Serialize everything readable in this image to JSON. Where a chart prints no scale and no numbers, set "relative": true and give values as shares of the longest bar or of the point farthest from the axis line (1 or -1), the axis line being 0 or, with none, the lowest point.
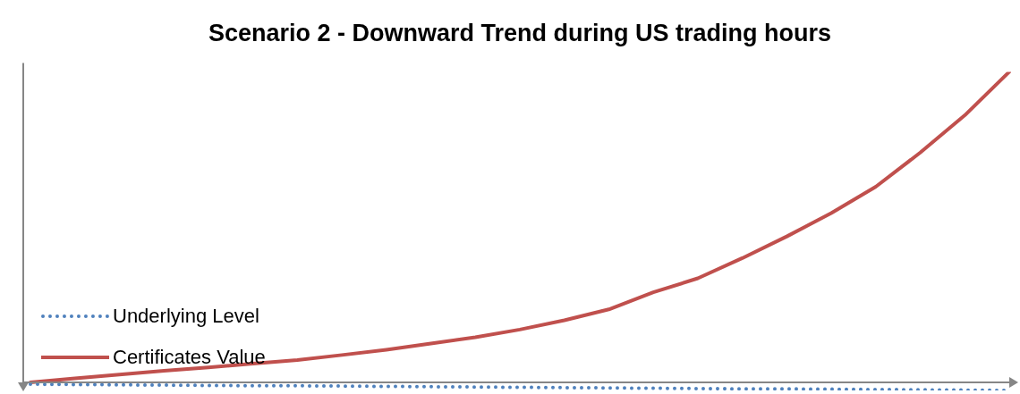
{
  "chart_data": {
    "type": "line",
    "title": "Scenario 2 - Downward Trend during US trading hours",
    "relative": true,
    "legend": "bottom left",
    "marker": "none",
    "categories": [
      null,
      null,
      null,
      null,
      null,
      null,
      null,
      null,
      null,
      null,
      null,
      null,
      null,
      null,
      null,
      null,
      null,
      null,
      null,
      null,
      null,
      null,
      null
    ],
    "series": [
      {
        "name": "Underlying Level",
        "color": "#4f81bd",
        "line_style": "dotted",
        "values": [
          -0.006,
          -0.007,
          -0.008,
          -0.009,
          -0.01,
          -0.011,
          -0.011,
          -0.012,
          -0.013,
          -0.014,
          -0.015,
          -0.016,
          -0.017,
          -0.018,
          -0.019,
          -0.02,
          -0.021,
          -0.021,
          -0.022,
          -0.023,
          -0.024,
          -0.025,
          -0.026
        ]
      },
      {
        "name": "Certificates Value",
        "color": "#c0504d",
        "line_style": "solid",
        "values": [
          0,
          0.013,
          0.025,
          0.037,
          0.048,
          0.06,
          0.072,
          0.088,
          0.105,
          0.125,
          0.145,
          0.17,
          0.2,
          0.235,
          0.29,
          0.335,
          0.4,
          0.47,
          0.545,
          0.63,
          0.74,
          0.86,
          1
        ]
      }
    ]
  }
}
